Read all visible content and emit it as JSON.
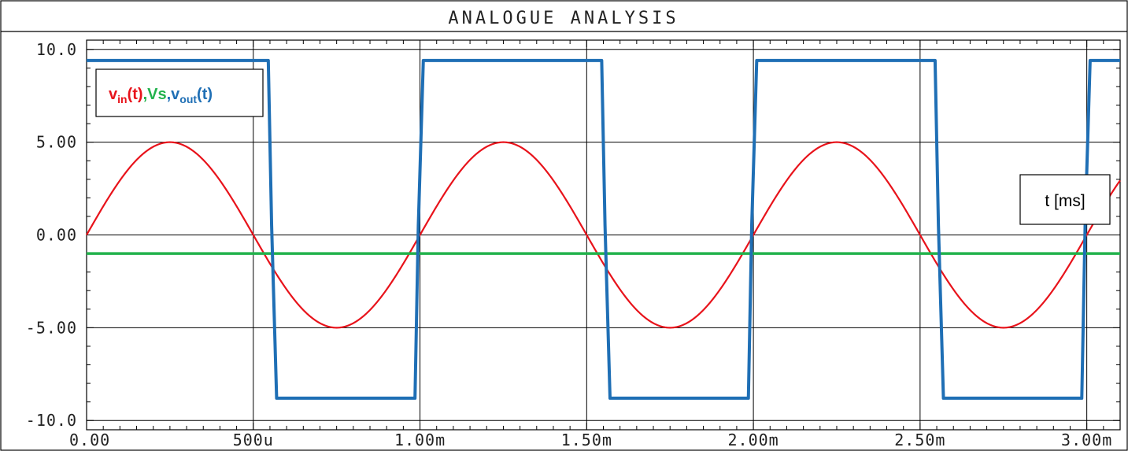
{
  "chart_data": {
    "type": "line",
    "title": "ANALOGUE ANALYSIS",
    "xlabel": "t [ms]",
    "xlim": [
      0,
      3.1
    ],
    "ylim": [
      -10.5,
      10.5
    ],
    "x_ticks": [
      {
        "value": 0.0,
        "label": "0.00"
      },
      {
        "value": 0.5,
        "label": "500u"
      },
      {
        "value": 1.0,
        "label": "1.00m"
      },
      {
        "value": 1.5,
        "label": "1.50m"
      },
      {
        "value": 2.0,
        "label": "2.00m"
      },
      {
        "value": 2.5,
        "label": "2.50m"
      },
      {
        "value": 3.0,
        "label": "3.00m"
      }
    ],
    "y_ticks": [
      {
        "value": 10,
        "label": "10.0"
      },
      {
        "value": 5,
        "label": "5.00"
      },
      {
        "value": 0,
        "label": "0.00"
      },
      {
        "value": -5,
        "label": "-5.00"
      },
      {
        "value": -10,
        "label": "-10.0"
      }
    ],
    "legend": {
      "placement": "top-left",
      "entries": [
        {
          "base": "v",
          "sub": "in",
          "suffix": "(t)",
          "color": "#e8131b"
        },
        {
          "text": "Vs",
          "color": "#22b24c"
        },
        {
          "base": "v",
          "sub": "out",
          "suffix": "(t)",
          "color": "#1f6fb5"
        }
      ]
    },
    "series": [
      {
        "key": "vin",
        "color": "#e8131b",
        "function": "sine",
        "amplitude": 5,
        "frequency_khz": 1,
        "phase_deg": 0
      },
      {
        "key": "vs",
        "color": "#22b24c",
        "function": "constant",
        "value": -1.0
      },
      {
        "key": "vout",
        "color": "#1f6fb5",
        "x": [
          0,
          0.545,
          0.555,
          0.57,
          0.985,
          0.995,
          1.01,
          1.545,
          1.555,
          1.57,
          1.985,
          1.995,
          2.01,
          2.545,
          2.555,
          2.57,
          2.985,
          2.995,
          3.01,
          3.1
        ],
        "y": [
          9.4,
          9.4,
          0.5,
          -8.8,
          -8.8,
          0.5,
          9.4,
          9.4,
          0.5,
          -8.8,
          -8.8,
          0.5,
          9.4,
          9.4,
          0.5,
          -8.8,
          -8.8,
          0.5,
          9.4,
          9.4
        ]
      }
    ]
  }
}
